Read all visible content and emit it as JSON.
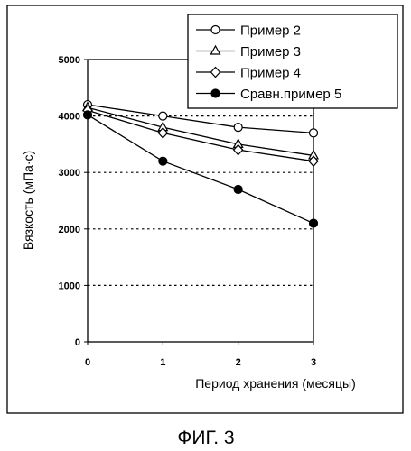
{
  "figure": {
    "caption": "ФИГ. 3"
  },
  "chart_data": {
    "type": "line",
    "title": "",
    "xlabel": "Период хранения (месяцы)",
    "ylabel": "Вязкость (мПа·с)",
    "x": [
      0,
      1,
      2,
      3
    ],
    "x_ticks": [
      "0",
      "1",
      "2",
      "3"
    ],
    "xlim": [
      0,
      3
    ],
    "y_ticks": [
      "0",
      "1000",
      "2000",
      "3000",
      "4000",
      "5000"
    ],
    "ylim": [
      0,
      5000
    ],
    "grid": "horizontal dotted",
    "legend_position": "top-right",
    "series": [
      {
        "name": "Пример 2",
        "marker": "open-circle",
        "values": [
          4200,
          4000,
          3800,
          3700
        ]
      },
      {
        "name": "Пример 3",
        "marker": "open-triangle",
        "values": [
          4150,
          3800,
          3500,
          3300
        ]
      },
      {
        "name": "Пример 4",
        "marker": "open-diamond",
        "values": [
          4100,
          3700,
          3400,
          3200
        ]
      },
      {
        "name": "Сравн.пример 5",
        "marker": "filled-circle",
        "values": [
          4020,
          3200,
          2700,
          2100
        ]
      }
    ]
  }
}
